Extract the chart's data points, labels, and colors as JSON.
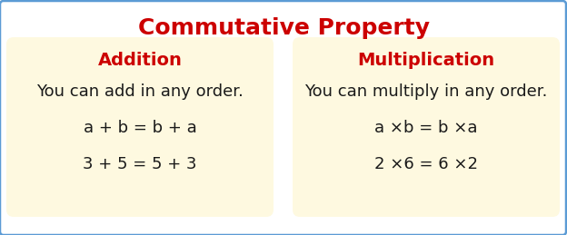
{
  "title": "Commutative Property",
  "title_color": "#cc0000",
  "title_fontsize": 18,
  "background_color": "#ffffff",
  "outer_border_color": "#5b9bd5",
  "box_bg_color": "#fef9e0",
  "left_header": "Addition",
  "left_line1": "You can add in any order.",
  "left_line2": "a + b = b + a",
  "left_line3": "3 + 5 = 5 + 3",
  "right_header": "Multiplication",
  "right_line1": "You can multiply in any order.",
  "right_line2": "a ×b = b ×a",
  "right_line3": "2 ×6 = 6 ×2",
  "header_color": "#cc0000",
  "text_color": "#1a1a1a",
  "header_fontsize": 14,
  "body_fontsize": 13,
  "equation_fontsize": 13
}
